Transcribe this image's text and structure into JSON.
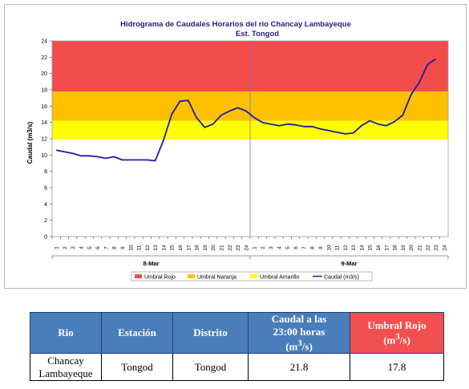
{
  "chart_data": {
    "type": "line",
    "title": "Hidrograma de Caudales Horarios del rio Chancay Lambayeque",
    "subtitle": "Est. Tongod",
    "ylabel": "Caudal  (m3/s)",
    "ylim": [
      0,
      24
    ],
    "yticks": [
      0,
      2,
      4,
      6,
      8,
      10,
      12,
      14,
      16,
      18,
      20,
      22,
      24
    ],
    "xtick_labels": [
      "1",
      "2",
      "3",
      "4",
      "5",
      "6",
      "7",
      "8",
      "9",
      "10",
      "11",
      "12",
      "13",
      "14",
      "15",
      "16",
      "17",
      "18",
      "19",
      "20",
      "21",
      "22",
      "23",
      "24",
      "1",
      "2",
      "3",
      "4",
      "5",
      "6",
      "7",
      "8",
      "9",
      "10",
      "11",
      "12",
      "13",
      "14",
      "15",
      "16",
      "17",
      "18",
      "19",
      "20",
      "21",
      "22",
      "23",
      "24"
    ],
    "days": [
      "8-Mar",
      "9-Mar"
    ],
    "thresholds": [
      {
        "name": "Umbral Rojo",
        "from": 17.8,
        "to": 24,
        "color": "#f24d4d"
      },
      {
        "name": "Umbral Naranja",
        "from": 14.2,
        "to": 17.8,
        "color": "#ffc000"
      },
      {
        "name": "Umbral Amarillo",
        "from": 11.9,
        "to": 14.2,
        "color": "#ffff00"
      }
    ],
    "series": [
      {
        "name": "Caudal (m3/s)",
        "color": "#1c1ca8",
        "x": [
          1,
          2,
          3,
          4,
          5,
          6,
          7,
          8,
          9,
          10,
          11,
          12,
          13,
          14,
          15,
          16,
          17,
          18,
          19,
          20,
          21,
          22,
          23,
          24,
          25,
          26,
          27,
          28,
          29,
          30,
          31,
          32,
          33,
          34,
          35,
          36,
          37,
          38,
          39,
          40,
          41,
          42,
          43,
          44,
          45,
          46,
          47
        ],
        "values": [
          10.6,
          10.4,
          10.2,
          9.9,
          9.9,
          9.8,
          9.6,
          9.8,
          9.4,
          9.4,
          9.4,
          9.4,
          9.3,
          11.8,
          15.0,
          16.6,
          16.7,
          14.6,
          13.4,
          13.8,
          14.9,
          15.4,
          15.8,
          15.4,
          14.6,
          14.0,
          13.8,
          13.6,
          13.8,
          13.7,
          13.5,
          13.5,
          13.2,
          13.0,
          12.8,
          12.6,
          12.7,
          13.6,
          14.2,
          13.8,
          13.6,
          14.1,
          14.9,
          17.4,
          18.9,
          21.1,
          21.8
        ]
      }
    ],
    "legend": "bottom"
  },
  "table": {
    "headers": [
      "Rio",
      "Estación",
      "Distrito",
      "Caudal a las 23:00 horas (m3/s)",
      "Umbral Rojo (m3/s)"
    ],
    "header_caudal_line1": "Caudal a las",
    "header_caudal_line2": "23:00 horas",
    "header_caudal_unit": "(m",
    "header_caudal_sup": "3",
    "header_caudal_unit_end": "/s)",
    "header_umbral_line1": "Umbral Rojo",
    "header_umbral_unit": "(m",
    "header_umbral_sup": "3",
    "header_umbral_unit_end": "/s)",
    "row": {
      "rio_line1": "Chancay",
      "rio_line2": "Lambayeque",
      "estacion": "Tongod",
      "distrito": "Tongod",
      "caudal": "21.8",
      "umbral": "17.8"
    }
  }
}
